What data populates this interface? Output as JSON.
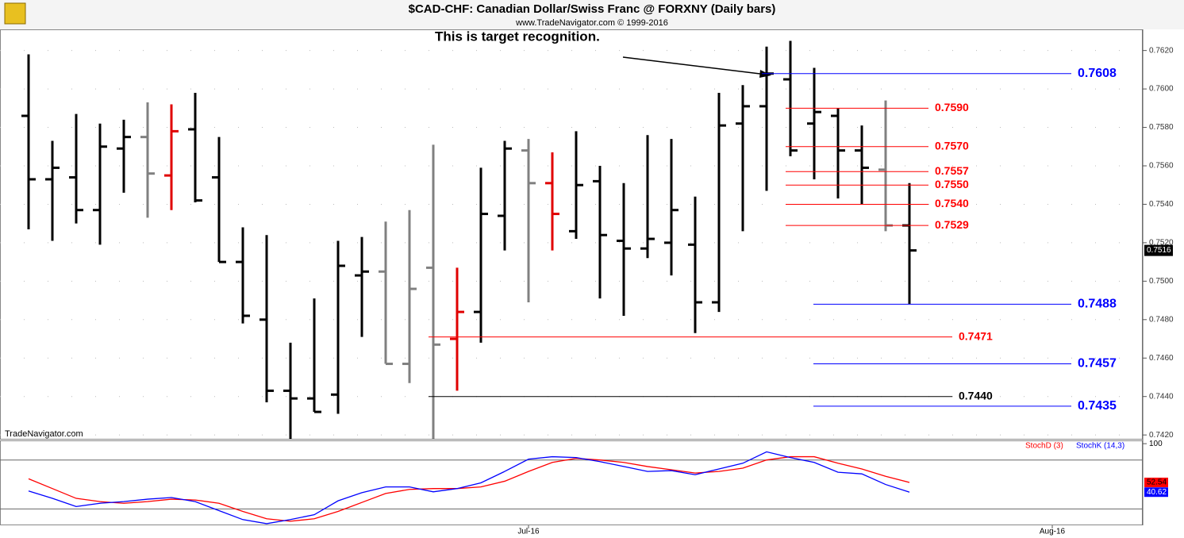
{
  "chart_data": {
    "type": "ohlc",
    "title": "$CAD-CHF:  Canadian Dollar/Swiss Franc @ FORXNY  (Daily bars)",
    "subtitle": "www.TradeNavigator.com © 1999-2016",
    "watermark": "TradeNavigator.com",
    "annotation": "This is target recognition.",
    "categories": [
      null,
      null,
      null,
      null,
      null,
      null,
      null,
      null,
      null,
      null,
      null,
      null,
      null,
      null,
      null,
      null,
      null,
      null,
      null,
      null,
      null,
      "Jul-16",
      null,
      null,
      null,
      null,
      null,
      null,
      null,
      null,
      null,
      null,
      null,
      null,
      null,
      null,
      null,
      null,
      null,
      null,
      null,
      null,
      null,
      "Aug-16"
    ],
    "open": [
      0.7586,
      0.7553,
      0.7554,
      0.7537,
      0.7569,
      0.7575,
      0.7555,
      0.7579,
      0.7554,
      0.751,
      0.748,
      0.7443,
      0.7439,
      0.7441,
      0.7503,
      0.7505,
      0.7457,
      0.7507,
      0.747,
      0.7484,
      0.7534,
      0.7568,
      0.7551,
      0.7526,
      0.7552,
      0.7521,
      0.7517,
      0.752,
      0.7519,
      0.7489,
      0.7582,
      0.7591,
      0.7605,
      0.7582,
      0.7586,
      0.7568,
      0.7558,
      0.7529,
      null,
      null,
      null,
      null,
      null,
      null
    ],
    "high": [
      0.7618,
      0.7573,
      0.7587,
      0.7582,
      0.7584,
      0.7593,
      0.7592,
      0.7598,
      0.7575,
      0.7528,
      0.7524,
      0.7468,
      0.7491,
      0.7521,
      0.7523,
      0.7531,
      0.7537,
      0.7571,
      0.7507,
      0.7559,
      0.7573,
      0.7574,
      0.7567,
      0.7578,
      0.756,
      0.7551,
      0.7576,
      0.7574,
      0.7544,
      0.7598,
      0.7602,
      0.7622,
      0.7625,
      0.7611,
      0.759,
      0.7581,
      0.7594,
      0.7551,
      null,
      null,
      null,
      null,
      null,
      null
    ],
    "low": [
      0.7527,
      0.7521,
      0.753,
      0.7519,
      0.7546,
      0.7533,
      0.7537,
      0.7541,
      0.751,
      0.7478,
      0.7437,
      0.7418,
      0.7432,
      0.7431,
      0.7471,
      0.7457,
      0.7447,
      0.7418,
      0.7443,
      0.7468,
      0.7516,
      0.7489,
      0.7516,
      0.7522,
      0.7491,
      0.7482,
      0.7512,
      0.7503,
      0.7473,
      0.7484,
      0.7526,
      0.7547,
      0.7565,
      0.7553,
      0.7543,
      0.754,
      0.7526,
      0.7488,
      null,
      null,
      null,
      null,
      null,
      null
    ],
    "close": [
      0.7553,
      0.7559,
      0.7537,
      0.757,
      0.7575,
      0.7556,
      0.7578,
      0.7542,
      0.751,
      0.7482,
      0.7443,
      0.7439,
      0.7432,
      0.7508,
      0.7505,
      0.7457,
      0.7496,
      0.7467,
      0.7484,
      0.7535,
      0.7569,
      0.7551,
      0.7535,
      0.755,
      0.7524,
      0.7517,
      0.7522,
      0.7537,
      0.7489,
      0.7581,
      0.7591,
      0.7608,
      0.7568,
      0.7588,
      0.7568,
      0.7559,
      0.7529,
      0.7516,
      null,
      null,
      null,
      null,
      null,
      null
    ],
    "bar_colors": [
      "#000000",
      "#000000",
      "#000000",
      "#000000",
      "#000000",
      "#808080",
      "#e00000",
      "#000000",
      "#000000",
      "#000000",
      "#000000",
      "#000000",
      "#000000",
      "#000000",
      "#000000",
      "#808080",
      "#808080",
      "#808080",
      "#e00000",
      "#000000",
      "#000000",
      "#808080",
      "#e00000",
      "#000000",
      "#000000",
      "#000000",
      "#000000",
      "#000000",
      "#000000",
      "#000000",
      "#000000",
      "#000000",
      "#000000",
      "#000000",
      "#000000",
      "#000000",
      "#808080",
      "#000000",
      null,
      null,
      null,
      null,
      null,
      null
    ],
    "ylim": [
      0.7418,
      0.7631
    ],
    "yticks": [
      {
        "value": 0.742,
        "label": "0.7420"
      },
      {
        "value": 0.744,
        "label": "0.7440"
      },
      {
        "value": 0.746,
        "label": "0.7460"
      },
      {
        "value": 0.748,
        "label": "0.7480"
      },
      {
        "value": 0.75,
        "label": "0.7500"
      },
      {
        "value": 0.752,
        "label": "0.7520"
      },
      {
        "value": 0.754,
        "label": "0.7540"
      },
      {
        "value": 0.756,
        "label": "0.7560"
      },
      {
        "value": 0.758,
        "label": "0.7580"
      },
      {
        "value": 0.76,
        "label": "0.7600"
      },
      {
        "value": 0.762,
        "label": "0.7620"
      }
    ],
    "grid": true,
    "levels": [
      {
        "value": 0.7608,
        "label": "0.7608",
        "color": "#0000ff"
      },
      {
        "value": 0.759,
        "label": "0.7590",
        "color": "#ff0000"
      },
      {
        "value": 0.757,
        "label": "0.7570",
        "color": "#ff0000"
      },
      {
        "value": 0.7557,
        "label": "0.7557",
        "color": "#ff0000"
      },
      {
        "value": 0.755,
        "label": "0.7550",
        "color": "#ff0000"
      },
      {
        "value": 0.754,
        "label": "0.7540",
        "color": "#ff0000"
      },
      {
        "value": 0.7529,
        "label": "0.7529",
        "color": "#ff0000"
      },
      {
        "value": 0.7488,
        "label": "0.7488",
        "color": "#0000ff"
      },
      {
        "value": 0.7471,
        "label": "0.7471",
        "color": "#ff0000"
      },
      {
        "value": 0.7457,
        "label": "0.7457",
        "color": "#0000ff"
      },
      {
        "value": 0.744,
        "label": "0.7440",
        "color": "#000000"
      },
      {
        "value": 0.7435,
        "label": "0.7435",
        "color": "#0000ff"
      }
    ],
    "indicator": {
      "type": "line",
      "ylim": [
        0,
        104
      ],
      "yticks": [
        100
      ],
      "hlines": [
        20,
        80
      ],
      "series": [
        {
          "name": "StochD (3)",
          "color": "#ff0000",
          "values": [
            57,
            45,
            33,
            29,
            27,
            29,
            32,
            31,
            27,
            17,
            8,
            5,
            8,
            17,
            28,
            39,
            44,
            45,
            45,
            47,
            54,
            66,
            77,
            82,
            80,
            77,
            72,
            68,
            64,
            66,
            70,
            80,
            84,
            84,
            76,
            69,
            60,
            52.54,
            null,
            null,
            null,
            null,
            null,
            null
          ]
        },
        {
          "name": "StochK (14,3)",
          "color": "#0000ff",
          "values": [
            42,
            33,
            23,
            27,
            29,
            32,
            34,
            29,
            18,
            7,
            2,
            7,
            13,
            30,
            40,
            47,
            47,
            41,
            45,
            52,
            66,
            81,
            84,
            83,
            78,
            72,
            66,
            67,
            62,
            69,
            76,
            90,
            83,
            77,
            65,
            63,
            50,
            40.62,
            null,
            null,
            null,
            null,
            null,
            null
          ]
        }
      ]
    }
  }
}
